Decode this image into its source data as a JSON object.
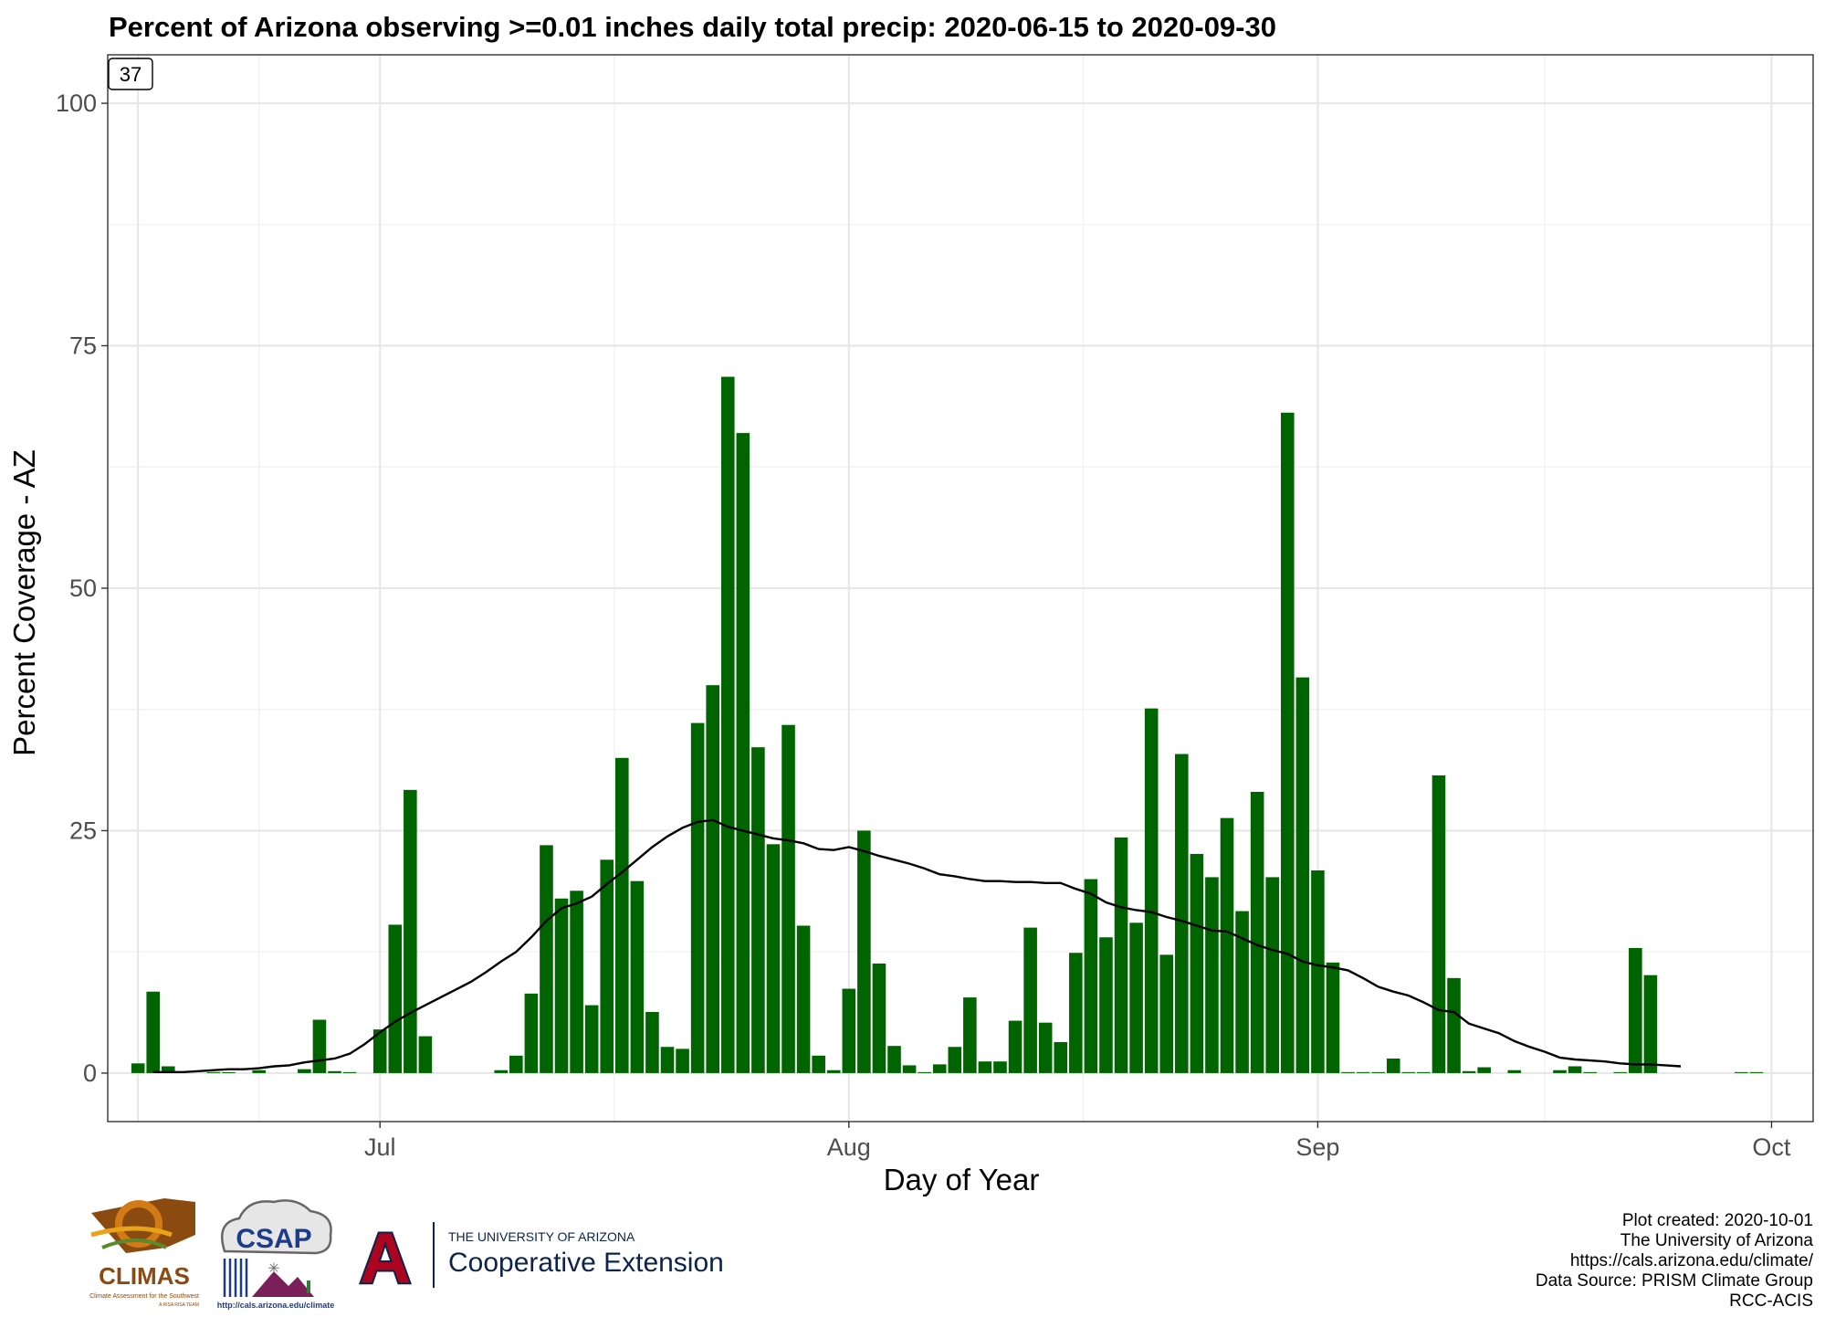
{
  "chart_data": {
    "type": "bar",
    "title": "Percent of Arizona observing >=0.01 inches daily total precip: 2020-06-15 to 2020-09-30",
    "xlabel": "Day of Year",
    "ylabel": "Percent Coverage - AZ",
    "ylim": [
      -5,
      105
    ],
    "y_ticks": [
      0,
      25,
      50,
      75,
      100
    ],
    "x_start_date": "2020-06-15",
    "x_ticks": [
      {
        "label": "Jul",
        "date": "2020-07-01"
      },
      {
        "label": "Aug",
        "date": "2020-08-01"
      },
      {
        "label": "Sep",
        "date": "2020-09-01"
      },
      {
        "label": "Oct",
        "date": "2020-10-01"
      }
    ],
    "grid": true,
    "bar_color": "#006400",
    "line_color": "#000000",
    "badge": "37",
    "series": [
      {
        "type": "bar",
        "values": [
          1.0,
          8.4,
          0.7,
          0,
          0,
          0.1,
          0.1,
          0,
          0.3,
          0,
          0,
          0.4,
          5.5,
          0.2,
          0.1,
          0,
          4.5,
          15.3,
          29.2,
          3.8,
          0,
          0,
          0,
          0,
          0.3,
          1.8,
          8.2,
          23.5,
          18.0,
          18.8,
          7.0,
          22.0,
          32.5,
          19.8,
          6.3,
          2.7,
          2.5,
          36.1,
          40.0,
          71.8,
          66.0,
          33.6,
          23.6,
          35.9,
          15.2,
          1.8,
          0.3,
          8.7,
          25.0,
          11.3,
          2.8,
          0.8,
          0.1,
          0.9,
          2.7,
          7.8,
          1.2,
          1.2,
          5.4,
          15.0,
          5.2,
          3.2,
          12.4,
          20.0,
          14.0,
          24.3,
          15.5,
          37.6,
          12.2,
          32.9,
          22.6,
          20.2,
          26.3,
          16.7,
          29.0,
          20.2,
          68.1,
          40.8,
          20.9,
          11.4,
          0.1,
          0.1,
          0.1,
          1.5,
          0.1,
          0.1,
          30.7,
          9.8,
          0.2,
          0.6,
          0,
          0.3,
          0,
          0,
          0.3,
          0.7,
          0.1,
          0,
          0.1,
          12.9,
          10.1,
          0,
          0,
          0,
          0,
          0,
          0.1,
          0.1
        ]
      },
      {
        "type": "line",
        "values": [
          null,
          0.1,
          0.1,
          0.1,
          0.2,
          0.3,
          0.4,
          0.4,
          0.5,
          0.7,
          0.8,
          1.1,
          1.3,
          1.5,
          2.0,
          3.0,
          4.2,
          5.3,
          6.2,
          7.0,
          7.8,
          8.6,
          9.4,
          10.4,
          11.5,
          12.5,
          14.0,
          15.7,
          17.0,
          17.5,
          18.2,
          19.5,
          20.7,
          22.0,
          23.3,
          24.4,
          25.3,
          25.9,
          26.1,
          25.4,
          25.0,
          24.6,
          24.2,
          24.0,
          23.7,
          23.1,
          23.0,
          23.3,
          22.9,
          22.4,
          22.0,
          21.6,
          21.1,
          20.5,
          20.3,
          20.0,
          19.8,
          19.8,
          19.7,
          19.7,
          19.6,
          19.6,
          19.0,
          18.5,
          17.6,
          17.1,
          16.8,
          16.6,
          16.1,
          15.7,
          15.2,
          14.7,
          14.6,
          13.9,
          13.2,
          12.7,
          12.3,
          11.5,
          11.1,
          10.9,
          10.6,
          9.8,
          8.9,
          8.4,
          8.0,
          7.3,
          6.5,
          6.3,
          5.1,
          4.6,
          4.1,
          3.3,
          2.7,
          2.2,
          1.6,
          1.4,
          1.3,
          1.2,
          1.0,
          0.9,
          0.9,
          0.8,
          0.7,
          null,
          null,
          null,
          null,
          null,
          null
        ]
      }
    ]
  },
  "caption": {
    "lines": [
      "Plot created: 2020-10-01",
      "The University of Arizona",
      "https://cals.arizona.edu/climate/",
      "Data Source: PRISM Climate Group",
      "RCC-ACIS"
    ]
  },
  "logos": {
    "climas": {
      "name": "CLIMAS",
      "tagline": "Climate Assessment for the Southwest",
      "subline": "A RISA RISA TEAM",
      "colors": [
        "#8b4a10",
        "#d27a14",
        "#e8a317",
        "#5a8a2e"
      ]
    },
    "csap": {
      "name": "CSAP",
      "url": "http://cals.arizona.edu/climate",
      "colors": [
        "#1d3b8a",
        "#7a1f5a",
        "#2e7d32"
      ]
    },
    "ua": {
      "letter": "A",
      "line1": "THE UNIVERSITY OF ARIZONA",
      "line2": "Cooperative Extension",
      "colors": [
        "#0c234b",
        "#ab0520"
      ]
    }
  }
}
